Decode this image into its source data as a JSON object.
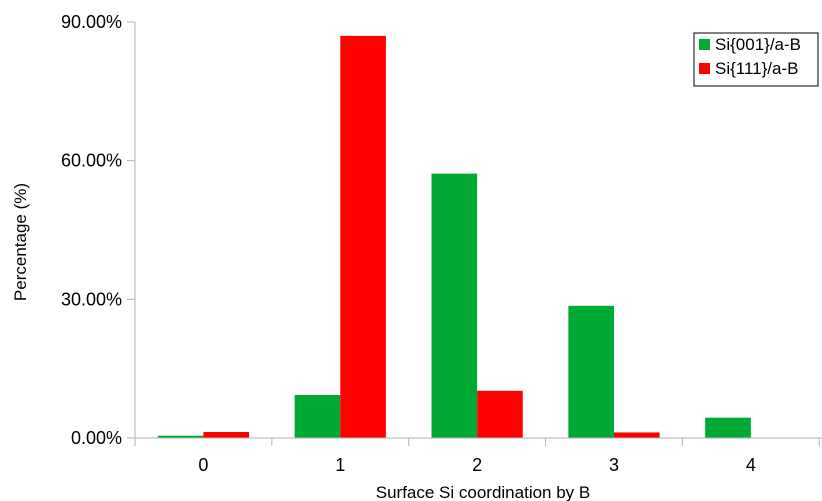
{
  "chart_data": {
    "type": "bar",
    "categories": [
      "0",
      "1",
      "2",
      "3",
      "4"
    ],
    "series": [
      {
        "name": "Si{001}/a-B",
        "color": "#00a933",
        "values": [
          0.5,
          9.3,
          57.2,
          28.6,
          4.4
        ]
      },
      {
        "name": "Si{111}/a-B",
        "color": "#ff0000",
        "values": [
          1.3,
          87.0,
          10.2,
          1.2,
          0.1
        ]
      }
    ],
    "xlabel": "Surface Si coordination by B",
    "ylabel": "Percentage (%)",
    "ylim": [
      0,
      90
    ],
    "yticks": [
      0,
      30,
      60,
      90
    ],
    "ytick_labels": [
      "0.00%",
      "30.00%",
      "60.00%",
      "90.00%"
    ],
    "grid": false,
    "legend_position": "top-right"
  }
}
